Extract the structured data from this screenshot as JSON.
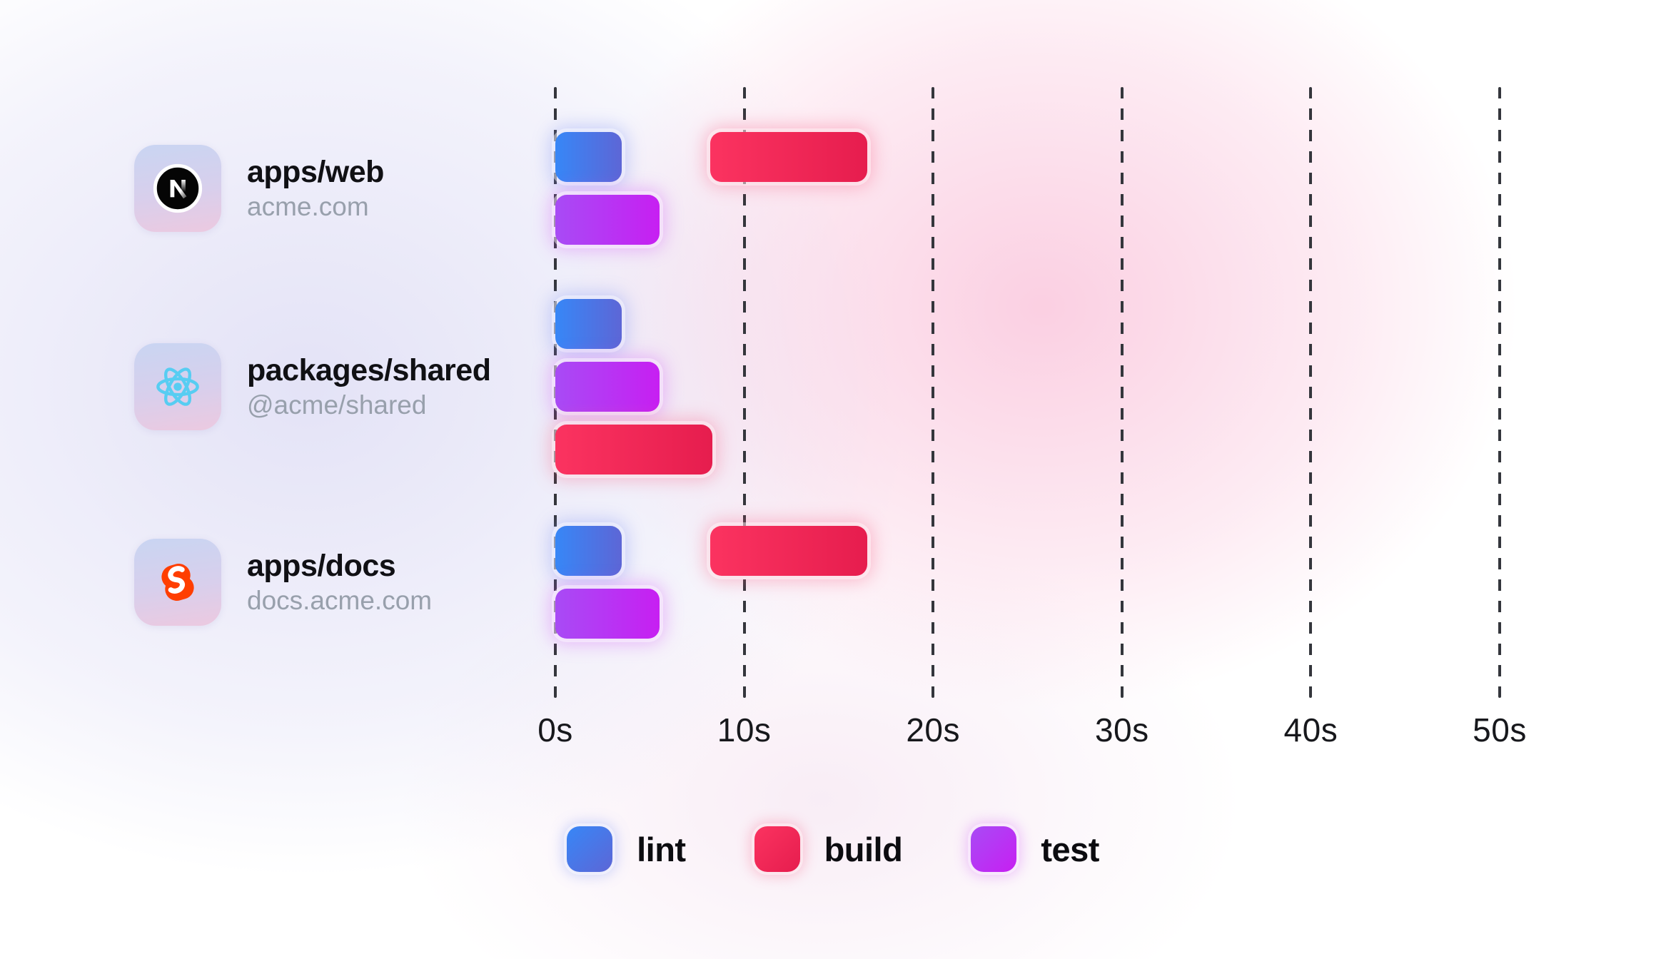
{
  "chart_data": {
    "type": "bar",
    "subtype": "horizontal-gantt-task-timeline",
    "unit": "seconds",
    "xlim": [
      0,
      50
    ],
    "grid": "dashed-vertical",
    "legend_position": "bottom-center",
    "x_ticks": [
      {
        "label": "0s",
        "value": 0
      },
      {
        "label": "10s",
        "value": 10
      },
      {
        "label": "20s",
        "value": 20
      },
      {
        "label": "30s",
        "value": 30
      },
      {
        "label": "40s",
        "value": 40
      },
      {
        "label": "50s",
        "value": 50
      }
    ],
    "rows": [
      {
        "package": "apps/web",
        "subtitle": "acme.com",
        "icon": "nextjs-logo",
        "tasks": [
          {
            "task": "lint",
            "start": 0,
            "end": 3.5,
            "lane": 0
          },
          {
            "task": "build",
            "start": 8.2,
            "end": 16.5,
            "lane": 0
          },
          {
            "task": "test",
            "start": 0,
            "end": 5.5,
            "lane": 1
          }
        ]
      },
      {
        "package": "packages/shared",
        "subtitle": "@acme/shared",
        "icon": "react-logo",
        "tasks": [
          {
            "task": "lint",
            "start": 0,
            "end": 3.5,
            "lane": 0
          },
          {
            "task": "test",
            "start": 0,
            "end": 5.5,
            "lane": 1
          },
          {
            "task": "build",
            "start": 0,
            "end": 8.3,
            "lane": 2
          }
        ]
      },
      {
        "package": "apps/docs",
        "subtitle": "docs.acme.com",
        "icon": "svelte-logo",
        "tasks": [
          {
            "task": "lint",
            "start": 0,
            "end": 3.5,
            "lane": 0
          },
          {
            "task": "build",
            "start": 8.2,
            "end": 16.5,
            "lane": 0
          },
          {
            "task": "test",
            "start": 0,
            "end": 5.5,
            "lane": 1
          }
        ]
      }
    ],
    "legend": [
      {
        "label": "lint",
        "task": "lint"
      },
      {
        "label": "build",
        "task": "build"
      },
      {
        "label": "test",
        "task": "test"
      }
    ],
    "task_colors": {
      "lint": {
        "gradient_start": "#3787f7",
        "gradient_end": "#5d66d6"
      },
      "build": {
        "gradient_start": "#fb3360",
        "gradient_end": "#e61d4e"
      },
      "test": {
        "gradient_start": "#a84bf5",
        "gradient_end": "#c71ff2"
      }
    },
    "style_colors": {
      "gridline": "#34363c",
      "tick_text": "#17181c",
      "title_text": "#101014",
      "subtitle_text": "#98a0ac",
      "svelte_orange": "#ff3e00",
      "react_cyan": "#57cdf2",
      "background_pink": "#fac7dd",
      "background_lavender": "#e2e1f6"
    }
  }
}
